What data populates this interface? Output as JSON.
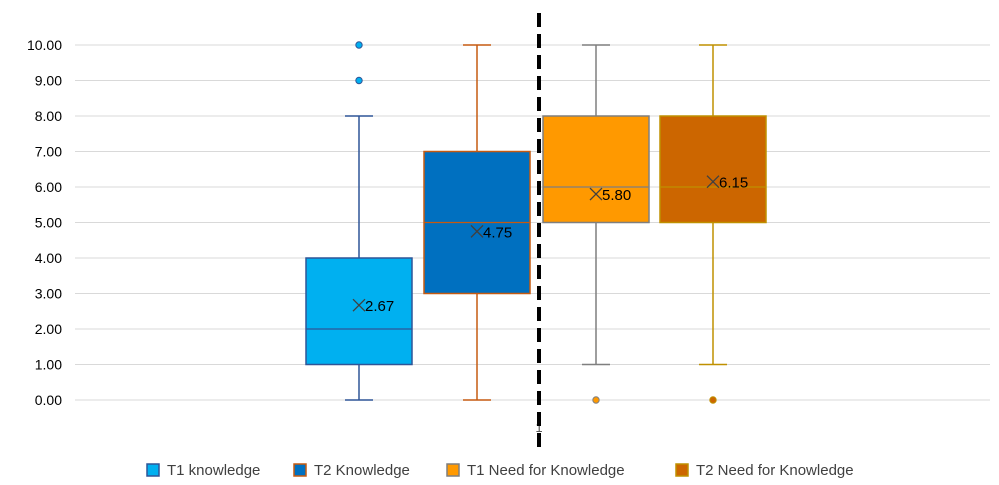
{
  "chart_data": {
    "type": "box",
    "ylim": [
      0,
      10
    ],
    "y_ticks": [
      "0.00",
      "1.00",
      "2.00",
      "3.00",
      "4.00",
      "5.00",
      "6.00",
      "7.00",
      "8.00",
      "9.00",
      "10.00"
    ],
    "categories": [
      "1"
    ],
    "grid": true,
    "legend_position": "bottom",
    "divider": "dashed vertical line between T2 knowledge and T1 Need for Knowledge",
    "series": [
      {
        "name": "T1 knowledge",
        "color": "#00B0F0",
        "edge": "#2F5597",
        "min": 0,
        "q1": 1,
        "median": 2,
        "q3": 4,
        "max": 8,
        "mean": 2.67,
        "mean_label": "2.67",
        "outliers": [
          9,
          10
        ]
      },
      {
        "name": "T2 Knowledge",
        "color": "#0070C0",
        "edge": "#C55A11",
        "min": 0,
        "q1": 3,
        "median": 5,
        "q3": 7,
        "max": 10,
        "mean": 4.75,
        "mean_label": "4.75",
        "outliers": []
      },
      {
        "name": "T1 Need for Knowledge",
        "color": "#FF9900",
        "edge": "#7F7F7F",
        "min": 1,
        "q1": 5,
        "median": 6,
        "q3": 8,
        "max": 10,
        "mean": 5.8,
        "mean_label": "5.80",
        "outliers": [
          0
        ]
      },
      {
        "name": "T2 Need for Knowledge",
        "color": "#CC6600",
        "edge": "#BF9000",
        "min": 1,
        "q1": 5,
        "median": 6,
        "q3": 8,
        "max": 10,
        "mean": 6.15,
        "mean_label": "6.15",
        "outliers": [
          0
        ]
      }
    ]
  }
}
